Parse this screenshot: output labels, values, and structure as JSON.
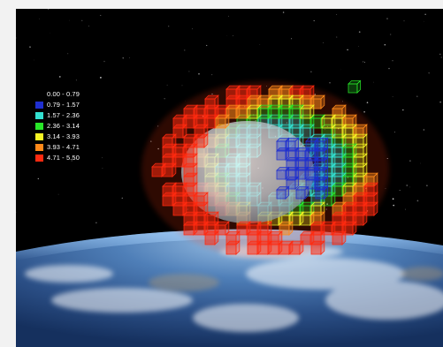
{
  "legend": {
    "entries": [
      {
        "label": "0.00 - 0.79",
        "color": "#000000"
      },
      {
        "label": "0.79 - 1.57",
        "color": "#1f2fd0"
      },
      {
        "label": "1.57 - 2.36",
        "color": "#33e0d0"
      },
      {
        "label": "2.36 - 3.14",
        "color": "#28e628"
      },
      {
        "label": "3.14 - 3.93",
        "color": "#f4f424"
      },
      {
        "label": "3.93 - 4.71",
        "color": "#ff8a1a"
      },
      {
        "label": "4.71 - 5.50",
        "color": "#ff2a10"
      }
    ]
  }
}
